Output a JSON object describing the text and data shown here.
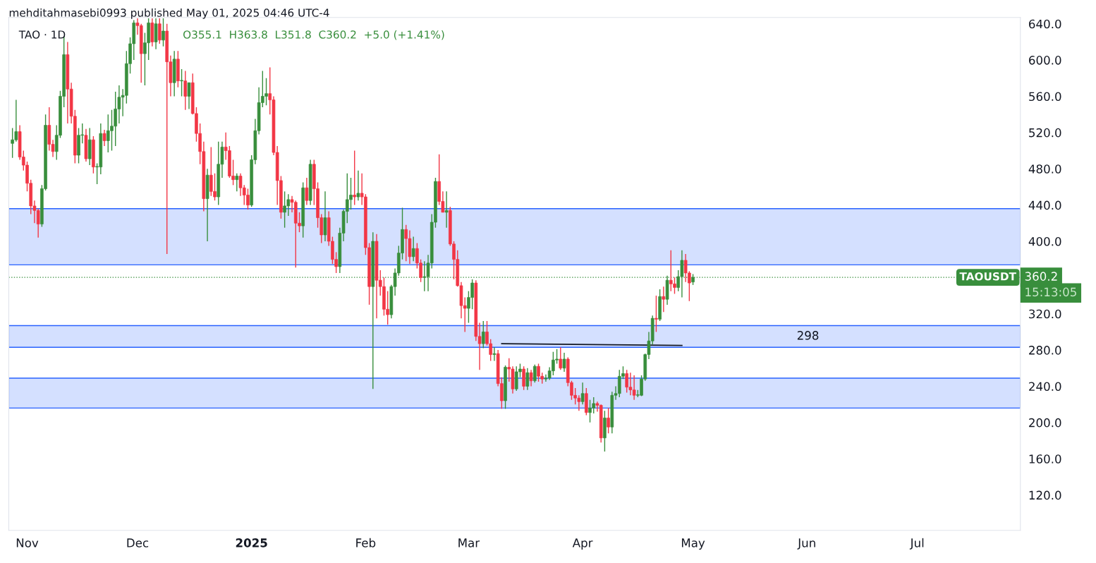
{
  "chart_data": {
    "type": "candlestick",
    "title": "TAO · 1D",
    "annotations": [
      "mehditahmasebi0993 published May 01, 2025 04:46 UTC-4",
      "O355.1  H363.8  L351.8  C360.2  +5.0 (+1.41%)",
      "360.2",
      "15:13:05"
    ],
    "x": [
      "2024-10-28",
      "2024-10-29",
      "2024-10-30",
      "2024-10-31",
      "2024-11-01",
      "2024-11-02",
      "2024-11-03",
      "2024-11-04",
      "2024-11-05",
      "2024-11-06",
      "2024-11-07",
      "2024-11-08",
      "2024-11-09",
      "2024-11-10",
      "2024-11-11",
      "2024-11-12",
      "2024-11-13",
      "2024-11-14",
      "2024-11-15",
      "2024-11-16",
      "2024-11-17",
      "2024-11-18",
      "2024-11-19",
      "2024-11-20",
      "2024-11-21",
      "2024-11-22",
      "2024-11-23",
      "2024-11-24",
      "2024-11-25",
      "2024-11-26",
      "2024-11-27",
      "2024-11-28",
      "2024-11-29",
      "2024-11-30",
      "2024-12-01",
      "2024-12-02",
      "2024-12-03",
      "2024-12-04",
      "2024-12-05",
      "2024-12-06",
      "2024-12-07",
      "2024-12-08",
      "2024-12-09",
      "2024-12-10",
      "2024-12-11",
      "2024-12-12",
      "2024-12-13",
      "2024-12-14",
      "2024-12-15",
      "2024-12-16",
      "2024-12-17",
      "2024-12-18",
      "2024-12-19",
      "2024-12-20",
      "2024-12-21",
      "2024-12-22",
      "2024-12-23",
      "2024-12-24",
      "2024-12-25",
      "2024-12-26",
      "2024-12-27",
      "2024-12-28",
      "2024-12-29",
      "2024-12-30",
      "2024-12-31",
      "2025-01-01",
      "2025-01-02",
      "2025-01-03",
      "2025-01-04",
      "2025-01-05",
      "2025-01-06",
      "2025-01-07",
      "2025-01-08",
      "2025-01-09",
      "2025-01-10",
      "2025-01-11",
      "2025-01-12",
      "2025-01-13",
      "2025-01-14",
      "2025-01-15",
      "2025-01-16",
      "2025-01-17",
      "2025-01-18",
      "2025-01-19",
      "2025-01-20",
      "2025-01-21",
      "2025-01-22",
      "2025-01-23",
      "2025-01-24",
      "2025-01-25",
      "2025-01-26",
      "2025-01-27",
      "2025-01-28",
      "2025-01-29",
      "2025-01-30",
      "2025-01-31",
      "2025-02-01",
      "2025-02-02",
      "2025-02-03",
      "2025-02-04",
      "2025-02-05",
      "2025-02-06",
      "2025-02-07",
      "2025-02-08",
      "2025-02-09",
      "2025-02-10",
      "2025-02-11",
      "2025-02-12",
      "2025-02-13",
      "2025-02-14",
      "2025-02-15",
      "2025-02-16",
      "2025-02-17",
      "2025-02-18",
      "2025-02-19",
      "2025-02-20",
      "2025-02-21",
      "2025-02-22",
      "2025-02-23",
      "2025-02-24",
      "2025-02-25",
      "2025-02-26",
      "2025-02-27",
      "2025-02-28",
      "2025-03-01",
      "2025-03-02",
      "2025-03-03",
      "2025-03-04",
      "2025-03-05",
      "2025-03-06",
      "2025-03-07",
      "2025-03-08",
      "2025-03-09",
      "2025-03-10",
      "2025-03-11",
      "2025-03-12",
      "2025-03-13",
      "2025-03-14",
      "2025-03-15",
      "2025-03-16",
      "2025-03-17",
      "2025-03-18",
      "2025-03-19",
      "2025-03-20",
      "2025-03-21",
      "2025-03-22",
      "2025-03-23",
      "2025-03-24",
      "2025-03-25",
      "2025-03-26",
      "2025-03-27",
      "2025-03-28",
      "2025-03-29",
      "2025-03-30",
      "2025-03-31",
      "2025-04-01",
      "2025-04-02",
      "2025-04-03",
      "2025-04-04",
      "2025-04-05",
      "2025-04-06",
      "2025-04-07",
      "2025-04-08",
      "2025-04-09",
      "2025-04-10",
      "2025-04-11",
      "2025-04-12",
      "2025-04-13",
      "2025-04-14",
      "2025-04-15",
      "2025-04-16",
      "2025-04-17",
      "2025-04-18",
      "2025-04-19",
      "2025-04-20",
      "2025-04-21",
      "2025-04-22",
      "2025-04-23",
      "2025-04-24",
      "2025-04-25",
      "2025-04-26",
      "2025-04-27",
      "2025-04-28",
      "2025-04-29",
      "2025-04-30",
      "2025-05-01"
    ],
    "ohlc": [
      [
        508,
        525,
        492,
        512
      ],
      [
        512,
        556,
        510,
        521
      ],
      [
        521,
        528,
        490,
        493
      ],
      [
        493,
        500,
        478,
        484
      ],
      [
        484,
        488,
        455,
        464
      ],
      [
        464,
        468,
        430,
        439
      ],
      [
        439,
        445,
        420,
        434
      ],
      [
        434,
        436,
        404,
        419
      ],
      [
        419,
        462,
        416,
        458
      ],
      [
        458,
        540,
        456,
        528
      ],
      [
        528,
        548,
        500,
        507
      ],
      [
        507,
        512,
        493,
        499
      ],
      [
        499,
        528,
        490,
        517
      ],
      [
        517,
        566,
        514,
        560
      ],
      [
        560,
        626,
        548,
        606
      ],
      [
        606,
        620,
        530,
        568
      ],
      [
        568,
        575,
        530,
        538
      ],
      [
        538,
        545,
        486,
        495
      ],
      [
        495,
        525,
        486,
        517
      ],
      [
        517,
        530,
        508,
        517
      ],
      [
        517,
        524,
        488,
        491
      ],
      [
        491,
        525,
        484,
        512
      ],
      [
        512,
        516,
        475,
        482
      ],
      [
        482,
        486,
        463,
        482
      ],
      [
        482,
        530,
        474,
        519
      ],
      [
        519,
        523,
        505,
        511
      ],
      [
        511,
        540,
        498,
        522
      ],
      [
        522,
        545,
        500,
        527
      ],
      [
        527,
        565,
        505,
        546
      ],
      [
        546,
        572,
        530,
        559
      ],
      [
        559,
        568,
        538,
        561
      ],
      [
        561,
        610,
        552,
        596
      ],
      [
        596,
        625,
        585,
        618
      ],
      [
        618,
        644,
        600,
        641
      ],
      [
        641,
        646,
        628,
        638
      ],
      [
        638,
        640,
        575,
        607
      ],
      [
        607,
        630,
        572,
        619
      ],
      [
        619,
        646,
        600,
        641
      ],
      [
        641,
        646,
        615,
        620
      ],
      [
        620,
        646,
        612,
        640
      ],
      [
        640,
        646,
        618,
        622
      ],
      [
        622,
        646,
        615,
        632
      ],
      [
        632,
        640,
        386,
        598
      ],
      [
        598,
        605,
        560,
        575
      ],
      [
        575,
        610,
        560,
        601
      ],
      [
        601,
        610,
        570,
        577
      ],
      [
        577,
        590,
        560,
        577
      ],
      [
        577,
        588,
        545,
        560
      ],
      [
        560,
        575,
        546,
        575
      ],
      [
        575,
        585,
        540,
        541
      ],
      [
        541,
        548,
        510,
        519
      ],
      [
        519,
        530,
        485,
        499
      ],
      [
        499,
        510,
        433,
        447
      ],
      [
        447,
        480,
        400,
        473
      ],
      [
        473,
        504,
        450,
        455
      ],
      [
        455,
        475,
        445,
        449
      ],
      [
        449,
        510,
        440,
        485
      ],
      [
        485,
        510,
        470,
        504
      ],
      [
        504,
        520,
        490,
        500
      ],
      [
        500,
        505,
        470,
        472
      ],
      [
        472,
        490,
        462,
        468
      ],
      [
        468,
        475,
        455,
        472
      ],
      [
        472,
        475,
        450,
        459
      ],
      [
        459,
        462,
        440,
        451
      ],
      [
        451,
        458,
        435,
        440
      ],
      [
        440,
        495,
        438,
        490
      ],
      [
        490,
        535,
        485,
        522
      ],
      [
        522,
        570,
        518,
        553
      ],
      [
        553,
        588,
        548,
        560
      ],
      [
        560,
        580,
        550,
        563
      ],
      [
        563,
        592,
        540,
        556
      ],
      [
        556,
        560,
        495,
        498
      ],
      [
        498,
        505,
        440,
        467
      ],
      [
        467,
        472,
        425,
        432
      ],
      [
        432,
        455,
        415,
        439
      ],
      [
        439,
        452,
        428,
        446
      ],
      [
        446,
        450,
        432,
        443
      ],
      [
        443,
        445,
        371,
        420
      ],
      [
        420,
        432,
        410,
        417
      ],
      [
        417,
        465,
        404,
        459
      ],
      [
        459,
        470,
        440,
        445
      ],
      [
        445,
        490,
        440,
        485
      ],
      [
        485,
        490,
        440,
        458
      ],
      [
        458,
        465,
        415,
        426
      ],
      [
        426,
        430,
        398,
        407
      ],
      [
        407,
        455,
        400,
        426
      ],
      [
        426,
        433,
        395,
        400
      ],
      [
        400,
        405,
        375,
        380
      ],
      [
        380,
        388,
        365,
        372
      ],
      [
        372,
        415,
        365,
        409
      ],
      [
        409,
        435,
        400,
        433
      ],
      [
        433,
        475,
        420,
        446
      ],
      [
        446,
        470,
        435,
        451
      ],
      [
        451,
        500,
        440,
        449
      ],
      [
        449,
        478,
        445,
        453
      ],
      [
        453,
        475,
        440,
        449
      ],
      [
        449,
        452,
        385,
        393
      ],
      [
        393,
        398,
        330,
        350
      ],
      [
        350,
        410,
        237,
        400
      ],
      [
        400,
        408,
        315,
        357
      ],
      [
        357,
        368,
        340,
        350
      ],
      [
        350,
        360,
        318,
        325
      ],
      [
        325,
        345,
        308,
        319
      ],
      [
        319,
        352,
        315,
        350
      ],
      [
        350,
        370,
        340,
        365
      ],
      [
        365,
        395,
        362,
        387
      ],
      [
        387,
        437,
        380,
        413
      ],
      [
        413,
        418,
        378,
        403
      ],
      [
        403,
        412,
        375,
        383
      ],
      [
        383,
        405,
        378,
        392
      ],
      [
        392,
        398,
        370,
        376
      ],
      [
        376,
        380,
        355,
        360
      ],
      [
        360,
        378,
        345,
        361
      ],
      [
        361,
        385,
        345,
        376
      ],
      [
        376,
        430,
        370,
        421
      ],
      [
        421,
        470,
        415,
        466
      ],
      [
        466,
        496,
        440,
        444
      ],
      [
        444,
        455,
        432,
        432
      ],
      [
        432,
        455,
        415,
        434
      ],
      [
        434,
        438,
        395,
        397
      ],
      [
        397,
        400,
        358,
        380
      ],
      [
        380,
        390,
        350,
        351
      ],
      [
        351,
        355,
        315,
        329
      ],
      [
        329,
        338,
        300,
        326
      ],
      [
        326,
        345,
        310,
        338
      ],
      [
        338,
        358,
        325,
        354
      ],
      [
        354,
        357,
        290,
        295
      ],
      [
        295,
        310,
        258,
        287
      ],
      [
        287,
        312,
        282,
        300
      ],
      [
        300,
        312,
        285,
        287
      ],
      [
        287,
        292,
        268,
        275
      ],
      [
        275,
        283,
        268,
        276
      ],
      [
        276,
        280,
        240,
        243
      ],
      [
        243,
        250,
        215,
        224
      ],
      [
        224,
        263,
        215,
        261
      ],
      [
        261,
        271,
        245,
        259
      ],
      [
        259,
        262,
        232,
        237
      ],
      [
        237,
        262,
        235,
        256
      ],
      [
        256,
        265,
        250,
        259
      ],
      [
        259,
        262,
        236,
        240
      ],
      [
        240,
        260,
        236,
        255
      ],
      [
        255,
        258,
        240,
        246
      ],
      [
        246,
        264,
        244,
        262
      ],
      [
        262,
        265,
        245,
        251
      ],
      [
        251,
        255,
        243,
        248
      ],
      [
        248,
        253,
        245,
        249
      ],
      [
        249,
        261,
        247,
        257
      ],
      [
        257,
        278,
        252,
        269
      ],
      [
        269,
        281,
        265,
        270
      ],
      [
        270,
        283,
        258,
        260
      ],
      [
        260,
        277,
        256,
        270
      ],
      [
        270,
        272,
        240,
        244
      ],
      [
        244,
        246,
        225,
        230
      ],
      [
        230,
        238,
        220,
        227
      ],
      [
        227,
        230,
        213,
        223
      ],
      [
        223,
        244,
        220,
        232
      ],
      [
        232,
        238,
        208,
        211
      ],
      [
        211,
        225,
        200,
        216
      ],
      [
        216,
        228,
        210,
        221
      ],
      [
        221,
        223,
        212,
        219
      ],
      [
        219,
        220,
        178,
        183
      ],
      [
        183,
        213,
        168,
        205
      ],
      [
        205,
        216,
        188,
        195
      ],
      [
        195,
        234,
        188,
        230
      ],
      [
        230,
        240,
        225,
        232
      ],
      [
        232,
        258,
        228,
        251
      ],
      [
        251,
        262,
        248,
        254
      ],
      [
        254,
        258,
        233,
        239
      ],
      [
        239,
        255,
        230,
        236
      ],
      [
        236,
        252,
        225,
        230
      ],
      [
        230,
        236,
        228,
        230
      ],
      [
        230,
        252,
        229,
        248
      ],
      [
        248,
        276,
        246,
        275
      ],
      [
        275,
        300,
        270,
        290
      ],
      [
        290,
        318,
        286,
        315
      ],
      [
        315,
        340,
        300,
        314
      ],
      [
        314,
        347,
        312,
        339
      ],
      [
        339,
        350,
        322,
        336
      ],
      [
        336,
        362,
        330,
        357
      ],
      [
        357,
        390,
        345,
        353
      ],
      [
        353,
        360,
        342,
        349
      ],
      [
        349,
        368,
        345,
        361
      ],
      [
        361,
        390,
        338,
        379
      ],
      [
        379,
        386,
        355,
        365
      ],
      [
        365,
        367,
        334,
        354
      ],
      [
        355.1,
        363.8,
        351.8,
        360.2
      ]
    ],
    "series": [
      {
        "type": "line",
        "color": "#131722",
        "x": [
          "2025-03-10",
          "2025-04-28"
        ],
        "values": [
          287,
          285
        ]
      }
    ],
    "bands": [
      {
        "axis": "y",
        "from": 374,
        "to": 436,
        "color": "#2962ff"
      },
      {
        "axis": "y",
        "from": 283,
        "to": 307,
        "color": "#2962ff",
        "label": "298"
      },
      {
        "axis": "y",
        "from": 216,
        "to": 249,
        "color": "#2962ff"
      }
    ],
    "ref_lines": [
      {
        "axis": "y",
        "value": 360.2,
        "label": "TAOUSDT",
        "color": "#388e3c",
        "line_style": "dotted"
      }
    ],
    "xlim": [
      "2024-10-27",
      "2025-07-29"
    ],
    "xticks": [
      {
        "value": "2024-11-01",
        "label": "Nov"
      },
      {
        "value": "2024-12-01",
        "label": "Dec"
      },
      {
        "value": "2025-01-01",
        "label": "2025"
      },
      {
        "value": "2025-02-01",
        "label": "Feb"
      },
      {
        "value": "2025-03-01",
        "label": "Mar"
      },
      {
        "value": "2025-04-01",
        "label": "Apr"
      },
      {
        "value": "2025-05-01",
        "label": "May"
      },
      {
        "value": "2025-06-01",
        "label": "Jun"
      },
      {
        "value": "2025-07-01",
        "label": "Jul"
      }
    ],
    "ylim": [
      81,
      647
    ],
    "yticks": [
      {
        "value": 120,
        "label": "120.0"
      },
      {
        "value": 160,
        "label": "160.0"
      },
      {
        "value": 200,
        "label": "200.0"
      },
      {
        "value": 240,
        "label": "240.0"
      },
      {
        "value": 280,
        "label": "280.0"
      },
      {
        "value": 320,
        "label": "320.0"
      },
      {
        "value": 400,
        "label": "400.0"
      },
      {
        "value": 440,
        "label": "440.0"
      },
      {
        "value": 480,
        "label": "480.0"
      },
      {
        "value": 520,
        "label": "520.0"
      },
      {
        "value": 560,
        "label": "560.0"
      },
      {
        "value": 600,
        "label": "600.0"
      },
      {
        "value": 640,
        "label": "640.0"
      }
    ],
    "grid": false,
    "legend": false
  }
}
